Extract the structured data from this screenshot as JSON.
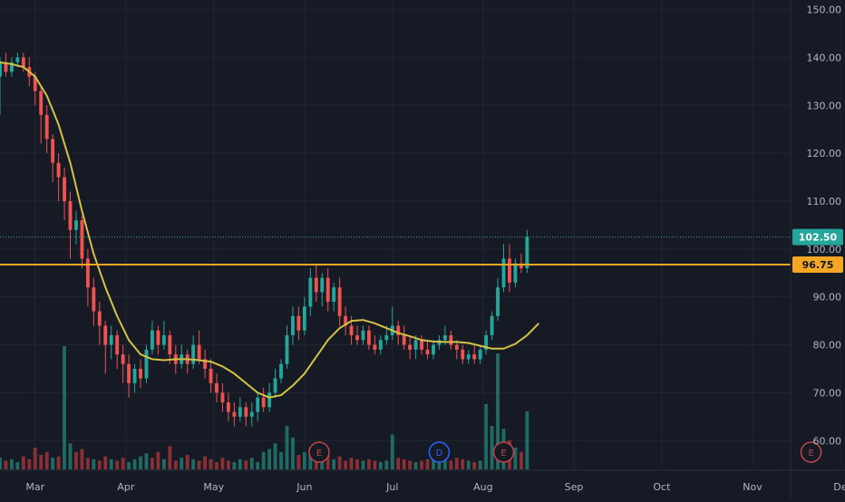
{
  "colors": {
    "background": "#161a25",
    "grid": "#232632",
    "up": "#26a69a",
    "down": "#ef5350",
    "up_volume": "#1f6b63",
    "down_volume": "#8a2f35",
    "moving_average": "#d4c244",
    "support_line": "#f5a623",
    "last_price": "#26a69a",
    "axis_text": "#b2b5be",
    "earnings": "#c2434c",
    "dividend": "#2962ff"
  },
  "chart_data": {
    "type": "candlestick",
    "grid": true,
    "y_axis": {
      "position": "right",
      "range": [
        54,
        152
      ],
      "ticks": [
        "150.00",
        "140.00",
        "130.00",
        "120.00",
        "110.00",
        "100.00",
        "90.00",
        "80.00",
        "70.00",
        "60.00"
      ]
    },
    "x_axis": {
      "range": [
        0,
        270
      ],
      "ticks": [
        {
          "label": "Mar",
          "x": 12
        },
        {
          "label": "Apr",
          "x": 43
        },
        {
          "label": "May",
          "x": 73
        },
        {
          "label": "Jun",
          "x": 104
        },
        {
          "label": "Jul",
          "x": 134
        },
        {
          "label": "Aug",
          "x": 165
        },
        {
          "label": "Sep",
          "x": 196
        },
        {
          "label": "Oct",
          "x": 226
        },
        {
          "label": "Nov",
          "x": 257
        },
        {
          "label": "De",
          "x": 287
        }
      ]
    },
    "price_labels": {
      "last_price": {
        "value": 102.5,
        "text": "102.50"
      },
      "support": {
        "value": 96.75,
        "text": "96.75"
      }
    },
    "events": [
      {
        "type": "earnings",
        "label": "E",
        "x": 109
      },
      {
        "type": "dividend",
        "label": "D",
        "x": 150
      },
      {
        "type": "earnings",
        "label": "E",
        "x": 172
      },
      {
        "type": "earnings",
        "label": "E",
        "x": 277
      }
    ],
    "moving_average": [
      [
        0,
        139
      ],
      [
        4,
        138.6
      ],
      [
        8,
        138
      ],
      [
        12,
        136
      ],
      [
        16,
        132
      ],
      [
        20,
        126
      ],
      [
        24,
        118
      ],
      [
        28,
        108
      ],
      [
        32,
        99
      ],
      [
        36,
        92
      ],
      [
        40,
        86
      ],
      [
        44,
        81
      ],
      [
        48,
        78
      ],
      [
        52,
        77
      ],
      [
        56,
        76.8
      ],
      [
        60,
        77
      ],
      [
        64,
        77
      ],
      [
        68,
        76.8
      ],
      [
        72,
        76.5
      ],
      [
        76,
        75.5
      ],
      [
        80,
        74
      ],
      [
        84,
        72
      ],
      [
        88,
        70
      ],
      [
        92,
        69
      ],
      [
        96,
        69.5
      ],
      [
        100,
        71.5
      ],
      [
        104,
        74
      ],
      [
        108,
        77.5
      ],
      [
        112,
        81
      ],
      [
        116,
        83.5
      ],
      [
        120,
        85
      ],
      [
        124,
        85.2
      ],
      [
        128,
        84.5
      ],
      [
        132,
        83.5
      ],
      [
        136,
        82.5
      ],
      [
        140,
        81.8
      ],
      [
        144,
        81
      ],
      [
        148,
        80.7
      ],
      [
        152,
        80.6
      ],
      [
        156,
        80.6
      ],
      [
        160,
        80.4
      ],
      [
        164,
        79.8
      ],
      [
        168,
        79.2
      ],
      [
        172,
        79.2
      ],
      [
        176,
        80.2
      ],
      [
        180,
        82
      ],
      [
        184,
        84.5
      ]
    ],
    "candles": [
      [
        0,
        136,
        139,
        128,
        140
      ],
      [
        2,
        139,
        137,
        136,
        141
      ],
      [
        4,
        137,
        139,
        136,
        140
      ],
      [
        6,
        139,
        140,
        138,
        141
      ],
      [
        8,
        140,
        138,
        137,
        141
      ],
      [
        10,
        138,
        136,
        134,
        140
      ],
      [
        12,
        136,
        133,
        130,
        137
      ],
      [
        14,
        133,
        128,
        122,
        134
      ],
      [
        16,
        128,
        123,
        120,
        130
      ],
      [
        18,
        123,
        118,
        114,
        124
      ],
      [
        20,
        118,
        115,
        110,
        120
      ],
      [
        22,
        115,
        110,
        106,
        117
      ],
      [
        24,
        110,
        104,
        98,
        112
      ],
      [
        26,
        104,
        106,
        101,
        108
      ],
      [
        28,
        106,
        98,
        96,
        107
      ],
      [
        30,
        98,
        92,
        88,
        100
      ],
      [
        32,
        92,
        87,
        84,
        94
      ],
      [
        34,
        87,
        84,
        80,
        89
      ],
      [
        36,
        84,
        80,
        74,
        85
      ],
      [
        38,
        80,
        82,
        77,
        84
      ],
      [
        40,
        82,
        78,
        75,
        83
      ],
      [
        42,
        78,
        76,
        72,
        80
      ],
      [
        44,
        76,
        72,
        69,
        78
      ],
      [
        46,
        72,
        75,
        70,
        76
      ],
      [
        48,
        75,
        73,
        71,
        77
      ],
      [
        50,
        73,
        79,
        72,
        80
      ],
      [
        52,
        79,
        83,
        78,
        85
      ],
      [
        54,
        83,
        80,
        78,
        84
      ],
      [
        56,
        80,
        82,
        79,
        85
      ],
      [
        58,
        82,
        78,
        76,
        83
      ],
      [
        60,
        78,
        76,
        74,
        80
      ],
      [
        62,
        76,
        78,
        75,
        80
      ],
      [
        64,
        78,
        76,
        74,
        79
      ],
      [
        66,
        76,
        80,
        75,
        82
      ],
      [
        68,
        80,
        77,
        76,
        83
      ],
      [
        70,
        77,
        75,
        73,
        79
      ],
      [
        72,
        75,
        72,
        70,
        77
      ],
      [
        74,
        72,
        70,
        68,
        74
      ],
      [
        76,
        70,
        68,
        66,
        72
      ],
      [
        78,
        68,
        66,
        64,
        70
      ],
      [
        80,
        66,
        65,
        63,
        68
      ],
      [
        82,
        65,
        67,
        64,
        69
      ],
      [
        84,
        67,
        65,
        63,
        68
      ],
      [
        86,
        65,
        66,
        63,
        68
      ],
      [
        88,
        66,
        69,
        64,
        70
      ],
      [
        90,
        69,
        67,
        66,
        71
      ],
      [
        92,
        67,
        70,
        66,
        72
      ],
      [
        94,
        70,
        73,
        69,
        75
      ],
      [
        96,
        73,
        76,
        72,
        77
      ],
      [
        98,
        76,
        82,
        75,
        84
      ],
      [
        100,
        82,
        86,
        80,
        88
      ],
      [
        102,
        86,
        83,
        81,
        88
      ],
      [
        104,
        83,
        88,
        82,
        90
      ],
      [
        106,
        88,
        94,
        86,
        96
      ],
      [
        108,
        94,
        91,
        89,
        97
      ],
      [
        110,
        91,
        94,
        88,
        95
      ],
      [
        112,
        94,
        89,
        87,
        96
      ],
      [
        114,
        89,
        92,
        87,
        93
      ],
      [
        116,
        92,
        86,
        84,
        94
      ],
      [
        118,
        86,
        84,
        82,
        88
      ],
      [
        120,
        84,
        82,
        80,
        86
      ],
      [
        122,
        82,
        81,
        80,
        84
      ],
      [
        124,
        81,
        83,
        80,
        84
      ],
      [
        126,
        83,
        80,
        79,
        84
      ],
      [
        128,
        80,
        79,
        78,
        82
      ],
      [
        130,
        79,
        81,
        78,
        82
      ],
      [
        132,
        81,
        82,
        80,
        84
      ],
      [
        134,
        82,
        84,
        81,
        88
      ],
      [
        136,
        84,
        82,
        80,
        85
      ],
      [
        138,
        82,
        80,
        79,
        84
      ],
      [
        140,
        80,
        79,
        77,
        82
      ],
      [
        142,
        79,
        81,
        77,
        82
      ],
      [
        144,
        81,
        79,
        78,
        82
      ],
      [
        146,
        79,
        78,
        77,
        81
      ],
      [
        148,
        78,
        80,
        77,
        81
      ],
      [
        150,
        80,
        81,
        79,
        82
      ],
      [
        152,
        81,
        82,
        80,
        84
      ],
      [
        154,
        82,
        80,
        79,
        83
      ],
      [
        156,
        80,
        79,
        77,
        81
      ],
      [
        158,
        79,
        77,
        76,
        80
      ],
      [
        160,
        77,
        78,
        76,
        79
      ],
      [
        162,
        78,
        77,
        76,
        80
      ],
      [
        164,
        77,
        79,
        76,
        80
      ],
      [
        166,
        79,
        82,
        78,
        83
      ],
      [
        168,
        82,
        86,
        81,
        87
      ],
      [
        170,
        86,
        92,
        85,
        94
      ],
      [
        172,
        92,
        98,
        91,
        101
      ],
      [
        174,
        98,
        93,
        91,
        101
      ],
      [
        176,
        93,
        97,
        92,
        98
      ],
      [
        178,
        97,
        96,
        95,
        99
      ],
      [
        180,
        96,
        102.5,
        95,
        104
      ]
    ],
    "volume": [
      [
        0,
        8,
        "up"
      ],
      [
        2,
        6,
        "down"
      ],
      [
        4,
        7,
        "up"
      ],
      [
        6,
        5,
        "up"
      ],
      [
        8,
        9,
        "down"
      ],
      [
        10,
        7,
        "down"
      ],
      [
        12,
        15,
        "down"
      ],
      [
        14,
        10,
        "down"
      ],
      [
        16,
        12,
        "down"
      ],
      [
        18,
        8,
        "up"
      ],
      [
        20,
        9,
        "down"
      ],
      [
        22,
        85,
        "up"
      ],
      [
        24,
        18,
        "up"
      ],
      [
        26,
        12,
        "down"
      ],
      [
        28,
        14,
        "down"
      ],
      [
        30,
        8,
        "down"
      ],
      [
        32,
        7,
        "up"
      ],
      [
        34,
        6,
        "down"
      ],
      [
        36,
        9,
        "down"
      ],
      [
        38,
        7,
        "up"
      ],
      [
        40,
        6,
        "down"
      ],
      [
        42,
        8,
        "down"
      ],
      [
        44,
        5,
        "up"
      ],
      [
        46,
        7,
        "up"
      ],
      [
        48,
        9,
        "up"
      ],
      [
        50,
        11,
        "up"
      ],
      [
        52,
        8,
        "down"
      ],
      [
        54,
        12,
        "down"
      ],
      [
        56,
        7,
        "up"
      ],
      [
        58,
        16,
        "down"
      ],
      [
        60,
        6,
        "down"
      ],
      [
        62,
        8,
        "up"
      ],
      [
        64,
        10,
        "down"
      ],
      [
        66,
        7,
        "up"
      ],
      [
        68,
        6,
        "down"
      ],
      [
        70,
        9,
        "down"
      ],
      [
        72,
        7,
        "down"
      ],
      [
        74,
        5,
        "down"
      ],
      [
        76,
        8,
        "down"
      ],
      [
        78,
        6,
        "down"
      ],
      [
        80,
        5,
        "up"
      ],
      [
        82,
        7,
        "up"
      ],
      [
        84,
        6,
        "down"
      ],
      [
        86,
        8,
        "up"
      ],
      [
        88,
        5,
        "up"
      ],
      [
        90,
        12,
        "up"
      ],
      [
        92,
        14,
        "up"
      ],
      [
        94,
        18,
        "up"
      ],
      [
        96,
        12,
        "up"
      ],
      [
        98,
        30,
        "up"
      ],
      [
        100,
        22,
        "up"
      ],
      [
        102,
        10,
        "down"
      ],
      [
        104,
        12,
        "up"
      ],
      [
        106,
        15,
        "up"
      ],
      [
        108,
        9,
        "down"
      ],
      [
        110,
        8,
        "up"
      ],
      [
        112,
        10,
        "down"
      ],
      [
        114,
        7,
        "up"
      ],
      [
        116,
        9,
        "down"
      ],
      [
        118,
        6,
        "down"
      ],
      [
        120,
        8,
        "down"
      ],
      [
        122,
        7,
        "down"
      ],
      [
        124,
        6,
        "up"
      ],
      [
        126,
        7,
        "down"
      ],
      [
        128,
        6,
        "down"
      ],
      [
        130,
        5,
        "up"
      ],
      [
        132,
        6,
        "up"
      ],
      [
        134,
        24,
        "up"
      ],
      [
        136,
        8,
        "down"
      ],
      [
        138,
        7,
        "down"
      ],
      [
        140,
        6,
        "down"
      ],
      [
        142,
        5,
        "up"
      ],
      [
        144,
        6,
        "down"
      ],
      [
        146,
        7,
        "down"
      ],
      [
        148,
        8,
        "up"
      ],
      [
        150,
        6,
        "up"
      ],
      [
        152,
        7,
        "up"
      ],
      [
        154,
        6,
        "down"
      ],
      [
        156,
        8,
        "down"
      ],
      [
        158,
        7,
        "down"
      ],
      [
        160,
        6,
        "up"
      ],
      [
        162,
        5,
        "down"
      ],
      [
        164,
        6,
        "up"
      ],
      [
        166,
        45,
        "up"
      ],
      [
        168,
        30,
        "up"
      ],
      [
        170,
        80,
        "up"
      ],
      [
        172,
        28,
        "up"
      ],
      [
        174,
        20,
        "down"
      ],
      [
        176,
        15,
        "up"
      ],
      [
        178,
        12,
        "down"
      ],
      [
        180,
        40,
        "up"
      ]
    ]
  }
}
